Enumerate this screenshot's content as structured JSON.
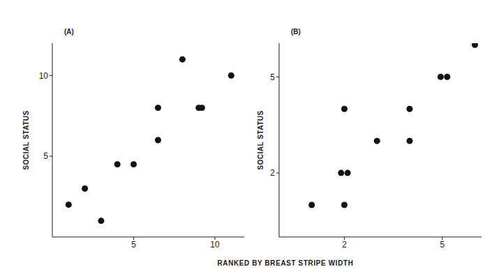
{
  "chart_data": [
    {
      "type": "scatter",
      "title": "(A)",
      "ylabel": "SOCIAL STATUS",
      "x": [
        1,
        2,
        3,
        4,
        5,
        6.5,
        6.5,
        8,
        9,
        9.2,
        11
      ],
      "values": [
        2,
        3,
        1,
        4.5,
        4.5,
        8,
        6,
        11,
        8,
        8,
        10
      ],
      "xlim": [
        0,
        11.8
      ],
      "ylim": [
        0,
        12
      ],
      "xticks": [
        5,
        10
      ],
      "yticks": [
        5,
        10
      ],
      "color": "#111111",
      "marker": "circle"
    },
    {
      "type": "scatter",
      "title": "(B)",
      "ylabel": "SOCIAL STATUS",
      "x": [
        1,
        2,
        1.9,
        2.1,
        2,
        3,
        4,
        4,
        4.95,
        5.15,
        6
      ],
      "values": [
        1,
        1,
        2,
        2,
        4,
        3,
        3,
        4,
        5,
        5,
        6
      ],
      "xlim": [
        0,
        6.2
      ],
      "ylim": [
        0,
        6.05
      ],
      "xticks": [
        2,
        5
      ],
      "yticks": [
        2,
        5
      ],
      "color": "#111111",
      "marker": "circle"
    }
  ],
  "xlabel": "RANKED BY BREAST STRIPE WIDTH"
}
